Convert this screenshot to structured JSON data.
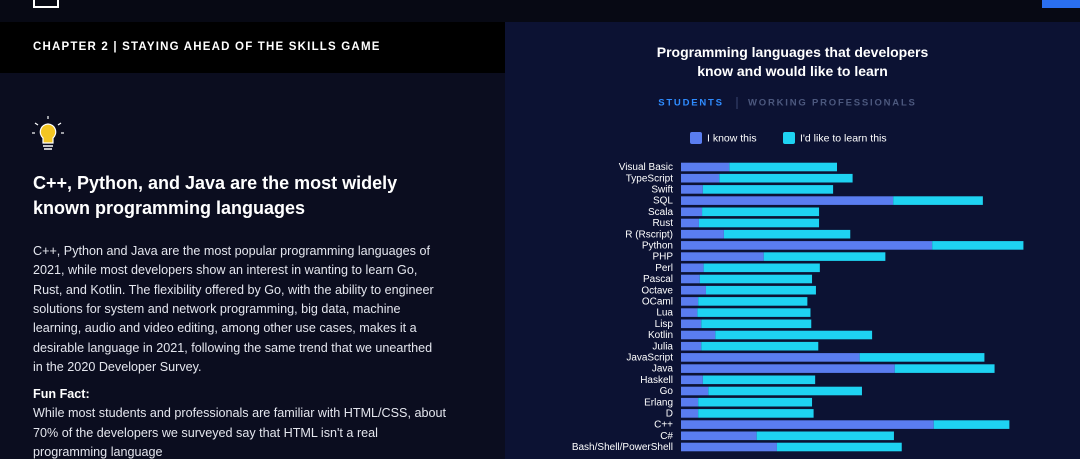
{
  "chapter": "CHAPTER 2 | STAYING AHEAD OF THE SKILLS GAME",
  "heading": [
    "C++, Python, and Java are the most widely",
    "known programming languages"
  ],
  "paragraph": [
    "C++, Python and Java are the most popular programming languages of",
    "2021, while most developers show an interest in wanting to learn Go,",
    "Rust, and Kotlin. The flexibility offered by Go, with the ability to engineer",
    "solutions for system and network programming, big data, machine",
    "learning, audio and video editing, among other use cases, makes it a",
    "desirable language in 2021, following the same trend that we unearthed",
    "in the 2020 Developer Survey."
  ],
  "fun_fact": {
    "title": "Fun Fact:",
    "lines": [
      "While most students and professionals are familiar with HTML/CSS, about",
      "70% of the developers we surveyed say that HTML isn't a real",
      "programming language"
    ]
  },
  "tabs": [
    "STUDENTS",
    "WORKING PROFESSIONALS"
  ],
  "chart_data": {
    "type": "stacked-bar-horizontal",
    "title": [
      "Programming languages that developers",
      "know and would like to learn"
    ],
    "categories": [
      "Visual Basic",
      "TypeScript",
      "Swift",
      "SQL",
      "Scala",
      "Rust",
      "R (Rscript)",
      "Python",
      "PHP",
      "Perl",
      "Pascal",
      "Octave",
      "OCaml",
      "Lua",
      "Lisp",
      "Kotlin",
      "Julia",
      "JavaScript",
      "Java",
      "Haskell",
      "Go",
      "Erlang",
      "D",
      "C++",
      "C#",
      "Bash/Shell/PowerShell"
    ],
    "series": [
      {
        "name": "I know this",
        "color": "#5a7df0",
        "values": [
          6.2,
          4.9,
          2.8,
          27.2,
          2.7,
          2.3,
          5.5,
          32.2,
          10.6,
          2.9,
          2.4,
          3.2,
          2.2,
          2.1,
          2.6,
          4.4,
          2.6,
          22.9,
          27.4,
          2.8,
          3.5,
          2.2,
          2.2,
          32.4,
          9.7,
          12.3
        ]
      },
      {
        "name": "I'd like to learn this",
        "color": "#1ed3f2",
        "values": [
          13.8,
          17.1,
          16.7,
          11.5,
          15.0,
          15.4,
          16.2,
          11.7,
          15.6,
          14.9,
          14.4,
          14.1,
          14.0,
          14.5,
          14.1,
          20.1,
          15.0,
          16.0,
          12.8,
          14.4,
          19.7,
          14.6,
          14.8,
          9.7,
          17.6,
          16.0
        ]
      }
    ],
    "xlim": [
      0,
      45
    ]
  }
}
